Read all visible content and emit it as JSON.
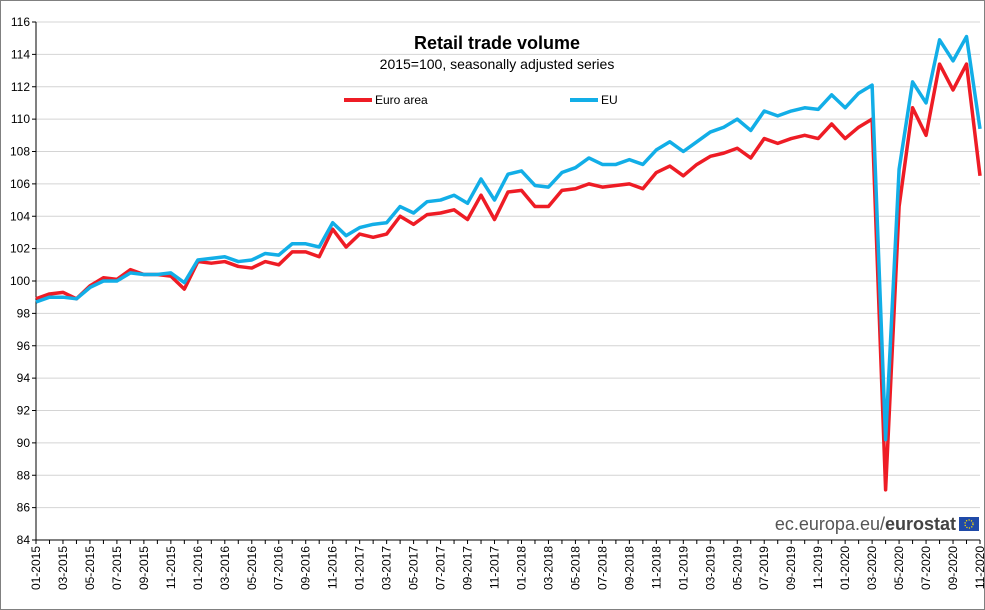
{
  "chart_data": {
    "type": "line",
    "title": "Retail trade volume",
    "subtitle": "2015=100, seasonally adjusted series",
    "xlabel": "",
    "ylabel": "",
    "ylim": [
      84,
      116
    ],
    "yticks": [
      84,
      86,
      88,
      90,
      92,
      94,
      96,
      98,
      100,
      102,
      104,
      106,
      108,
      110,
      112,
      114,
      116
    ],
    "grid": true,
    "legend_position": "top",
    "x": [
      "01-2015",
      "02-2015",
      "03-2015",
      "04-2015",
      "05-2015",
      "06-2015",
      "07-2015",
      "08-2015",
      "09-2015",
      "10-2015",
      "11-2015",
      "12-2015",
      "01-2016",
      "02-2016",
      "03-2016",
      "04-2016",
      "05-2016",
      "06-2016",
      "07-2016",
      "08-2016",
      "09-2016",
      "10-2016",
      "11-2016",
      "12-2016",
      "01-2017",
      "02-2017",
      "03-2017",
      "04-2017",
      "05-2017",
      "06-2017",
      "07-2017",
      "08-2017",
      "09-2017",
      "10-2017",
      "11-2017",
      "12-2017",
      "01-2018",
      "02-2018",
      "03-2018",
      "04-2018",
      "05-2018",
      "06-2018",
      "07-2018",
      "08-2018",
      "09-2018",
      "10-2018",
      "11-2018",
      "12-2018",
      "01-2019",
      "02-2019",
      "03-2019",
      "04-2019",
      "05-2019",
      "06-2019",
      "07-2019",
      "08-2019",
      "09-2019",
      "10-2019",
      "11-2019",
      "12-2019",
      "01-2020",
      "02-2020",
      "03-2020",
      "04-2020",
      "05-2020",
      "06-2020",
      "07-2020",
      "08-2020",
      "09-2020",
      "10-2020",
      "11-2020"
    ],
    "xtick_labels": [
      "01-2015",
      "03-2015",
      "05-2015",
      "07-2015",
      "09-2015",
      "11-2015",
      "01-2016",
      "03-2016",
      "05-2016",
      "07-2016",
      "09-2016",
      "11-2016",
      "01-2017",
      "03-2017",
      "05-2017",
      "07-2017",
      "09-2017",
      "11-2017",
      "01-2018",
      "03-2018",
      "05-2018",
      "07-2018",
      "09-2018",
      "11-2018",
      "01-2019",
      "03-2019",
      "05-2019",
      "07-2019",
      "09-2019",
      "11-2019",
      "01-2020",
      "03-2020",
      "05-2020",
      "07-2020",
      "09-2020",
      "11-2020"
    ],
    "series": [
      {
        "name": "Euro area",
        "color": "#ee1c25",
        "values": [
          98.9,
          99.2,
          99.3,
          98.9,
          99.7,
          100.2,
          100.1,
          100.7,
          100.4,
          100.4,
          100.3,
          99.5,
          101.2,
          101.1,
          101.2,
          100.9,
          100.8,
          101.2,
          101.0,
          101.8,
          101.8,
          101.5,
          103.2,
          102.1,
          102.9,
          102.7,
          102.9,
          104.0,
          103.5,
          104.1,
          104.2,
          104.4,
          103.8,
          105.3,
          103.8,
          105.5,
          105.6,
          104.6,
          104.6,
          105.6,
          105.7,
          106.0,
          105.8,
          105.9,
          106.0,
          105.7,
          106.7,
          107.1,
          106.5,
          107.2,
          107.7,
          107.9,
          108.2,
          107.6,
          108.8,
          108.5,
          108.8,
          109.0,
          108.8,
          109.7,
          108.8,
          109.5,
          110.0,
          87.1,
          104.6,
          110.7,
          109.0,
          113.4,
          111.8,
          113.4,
          106.5
        ]
      },
      {
        "name": "EU",
        "color": "#12aee7",
        "values": [
          98.7,
          99.0,
          99.0,
          98.9,
          99.6,
          100.0,
          100.0,
          100.5,
          100.4,
          100.4,
          100.5,
          99.9,
          101.3,
          101.4,
          101.5,
          101.2,
          101.3,
          101.7,
          101.6,
          102.3,
          102.3,
          102.1,
          103.6,
          102.8,
          103.3,
          103.5,
          103.6,
          104.6,
          104.2,
          104.9,
          105.0,
          105.3,
          104.8,
          106.3,
          105.0,
          106.6,
          106.8,
          105.9,
          105.8,
          106.7,
          107.0,
          107.6,
          107.2,
          107.2,
          107.5,
          107.2,
          108.1,
          108.6,
          108.0,
          108.6,
          109.2,
          109.5,
          110.0,
          109.3,
          110.5,
          110.2,
          110.5,
          110.7,
          110.6,
          111.5,
          110.7,
          111.6,
          112.1,
          90.2,
          106.9,
          112.3,
          111.0,
          114.9,
          113.6,
          115.1,
          109.4
        ]
      }
    ]
  },
  "footer": {
    "brand_prefix": "ec.europa.eu/",
    "brand_bold": "eurostat"
  }
}
